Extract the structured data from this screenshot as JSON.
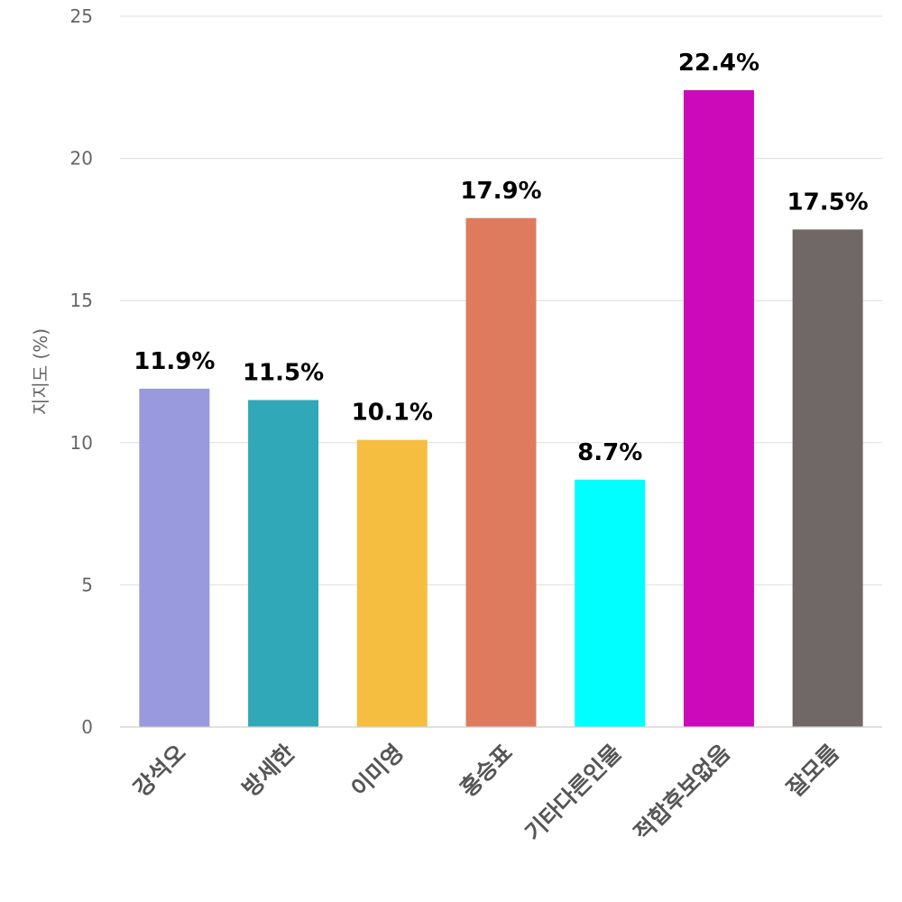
{
  "chart_data": {
    "type": "bar",
    "title": "",
    "xlabel": "",
    "ylabel": "지지도 (%)",
    "ylim": [
      0,
      25
    ],
    "yticks": [
      0,
      5,
      10,
      15,
      20,
      25
    ],
    "grid": true,
    "legend": "none",
    "categories": [
      "강석오",
      "방세한",
      "이미영",
      "홍승표",
      "기타다른인물",
      "적합후보없음",
      "잘모름"
    ],
    "values": [
      11.9,
      11.5,
      10.1,
      17.9,
      8.7,
      22.4,
      17.5
    ],
    "value_labels": [
      "11.9%",
      "11.5%",
      "10.1%",
      "17.9%",
      "8.7%",
      "22.4%",
      "17.5%"
    ],
    "colors": [
      "#9999dd",
      "#31a8b8",
      "#f5be41",
      "#de7b5f",
      "#00ffff",
      "#cc0ab9",
      "#706866"
    ]
  }
}
